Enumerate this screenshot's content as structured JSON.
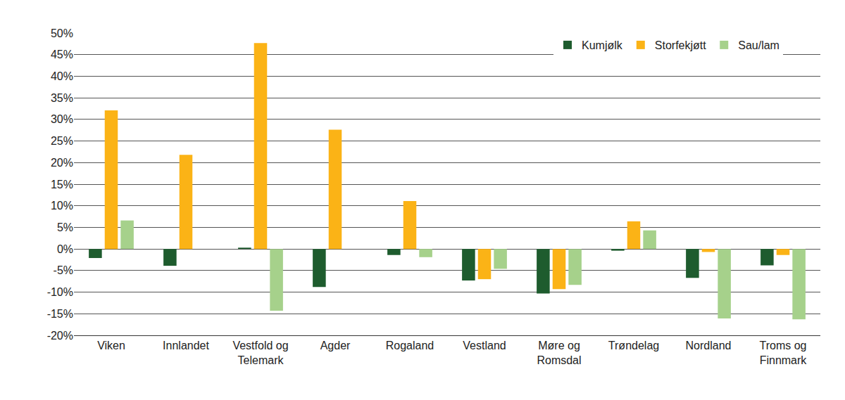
{
  "chart_data": {
    "type": "bar",
    "categories": [
      "Viken",
      "Innlandet",
      "Vestfold og\nTelemark",
      "Agder",
      "Rogaland",
      "Vestland",
      "Møre og\nRomsdal",
      "Trøndelag",
      "Nordland",
      "Troms og\nFinnmark"
    ],
    "series": [
      {
        "name": "Kumjølk",
        "color": "#1e5c2e",
        "values": [
          -2.1,
          -3.9,
          0.3,
          -8.8,
          -1.4,
          -7.3,
          -10.3,
          -0.4,
          -6.7,
          -3.8
        ]
      },
      {
        "name": "Storfekjøtt",
        "color": "#fbb316",
        "values": [
          32.1,
          21.8,
          47.7,
          27.6,
          11.1,
          -7.0,
          -9.3,
          6.4,
          -0.7,
          -1.4
        ]
      },
      {
        "name": "Sau/lam",
        "color": "#a6d18b",
        "values": [
          6.6,
          null,
          -14.3,
          null,
          -1.9,
          -4.6,
          -8.3,
          4.3,
          -16.1,
          -16.3
        ]
      }
    ],
    "ylim": [
      -20,
      50
    ],
    "yticks": [
      {
        "value": -20,
        "label": "-20%"
      },
      {
        "value": -15,
        "label": "-15%"
      },
      {
        "value": -10,
        "label": "-10%"
      },
      {
        "value": -5,
        "label": "-5%"
      },
      {
        "value": 0,
        "label": "0%"
      },
      {
        "value": 5,
        "label": "5%"
      },
      {
        "value": 10,
        "label": "10%"
      },
      {
        "value": 15,
        "label": "15%"
      },
      {
        "value": 20,
        "label": "20%"
      },
      {
        "value": 25,
        "label": "25%"
      },
      {
        "value": 30,
        "label": "30%"
      },
      {
        "value": 35,
        "label": "35%"
      },
      {
        "value": 40,
        "label": "40%"
      },
      {
        "value": 45,
        "label": "45%"
      },
      {
        "value": 50,
        "label": "50%"
      }
    ],
    "grid": true,
    "legend": "top right"
  }
}
